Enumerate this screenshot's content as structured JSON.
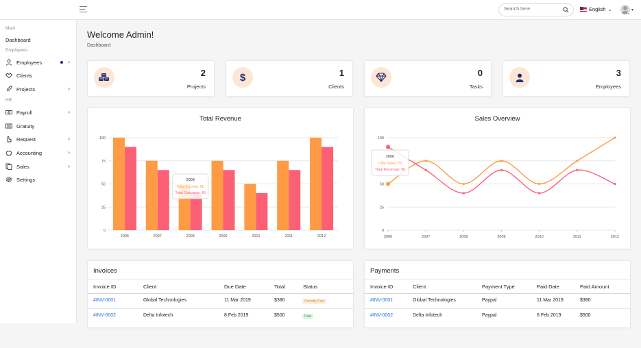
{
  "header": {
    "search_placeholder": "Search here",
    "language": "English"
  },
  "sidebar": {
    "sections": [
      "Main",
      "Employees",
      "HR"
    ],
    "items": [
      {
        "label": "Dashboard"
      },
      {
        "label": "Employees"
      },
      {
        "label": "Clients"
      },
      {
        "label": "Projects"
      },
      {
        "label": "Payroll"
      },
      {
        "label": "Gratuity"
      },
      {
        "label": "Request"
      },
      {
        "label": "Accounting"
      },
      {
        "label": "Sales"
      },
      {
        "label": "Settings"
      }
    ]
  },
  "page": {
    "title": "Welcome Admin!",
    "breadcrumb": "Dashboard"
  },
  "stats": [
    {
      "value": "2",
      "label": "Projects",
      "icon": "cubes-icon"
    },
    {
      "value": "1",
      "label": "Clients",
      "icon": "dollar-icon"
    },
    {
      "value": "0",
      "label": "Tasks",
      "icon": "diamond-icon"
    },
    {
      "value": "3",
      "label": "Employees",
      "icon": "user-icon"
    }
  ],
  "colors": {
    "accent": "#ff9b44",
    "accent2": "#fc6075",
    "icon_bg": "#fde7d4",
    "icon_fg": "#1e2a78",
    "link": "#1e6fd9"
  },
  "chart_data": [
    {
      "type": "bar",
      "title": "Total Revenue",
      "categories": [
        "2006",
        "2007",
        "2008",
        "2009",
        "2010",
        "2011",
        "2012"
      ],
      "series": [
        {
          "name": "Total Income",
          "values": [
            100,
            75,
            50,
            75,
            50,
            75,
            100
          ]
        },
        {
          "name": "Total Outcome",
          "values": [
            90,
            65,
            40,
            65,
            40,
            65,
            90
          ]
        }
      ],
      "ylim": [
        0,
        100
      ],
      "yticks": [
        "0",
        "25",
        "50",
        "75",
        "100"
      ],
      "tooltip": {
        "title": "2008",
        "line1": "Total Income: 50",
        "line2": "Total Outcome: 40"
      }
    },
    {
      "type": "line",
      "title": "Sales Overview",
      "categories": [
        "2006",
        "2007",
        "2008",
        "2009",
        "2010",
        "2011",
        "2012"
      ],
      "series": [
        {
          "name": "Total Sales",
          "values": [
            50,
            75,
            50,
            75,
            50,
            75,
            100
          ]
        },
        {
          "name": "Total Revenue",
          "values": [
            90,
            65,
            40,
            65,
            40,
            65,
            50
          ]
        }
      ],
      "ylim": [
        0,
        100
      ],
      "yticks": [
        "0",
        "25",
        "50",
        "75",
        "100"
      ],
      "tooltip": {
        "title": "2006",
        "line1": "Total Sales: 50",
        "line2": "Total Revenue: 90"
      }
    }
  ],
  "invoices": {
    "title": "Invoices",
    "headers": [
      "Invoice ID",
      "Client",
      "Due Date",
      "Total",
      "Status"
    ],
    "rows": [
      {
        "id": "#INV-0001",
        "client": "Global Technologies",
        "date": "11 Mar 2019",
        "total": "$380",
        "status": "Partially Paid"
      },
      {
        "id": "#INV-0002",
        "client": "Delta Infotech",
        "date": "8 Feb 2019",
        "total": "$500",
        "status": "Paid"
      }
    ]
  },
  "payments": {
    "title": "Payments",
    "headers": [
      "Invoice ID",
      "Client",
      "Payment Type",
      "Paid Date",
      "Paid Amount"
    ],
    "rows": [
      {
        "id": "#INV-0001",
        "client": "Global Technologies",
        "type": "Paypal",
        "date": "11 Mar 2019",
        "amount": "$380"
      },
      {
        "id": "#INV-0002",
        "client": "Delta Infotech",
        "type": "Paypal",
        "date": "8 Feb 2019",
        "amount": "$500"
      }
    ]
  }
}
